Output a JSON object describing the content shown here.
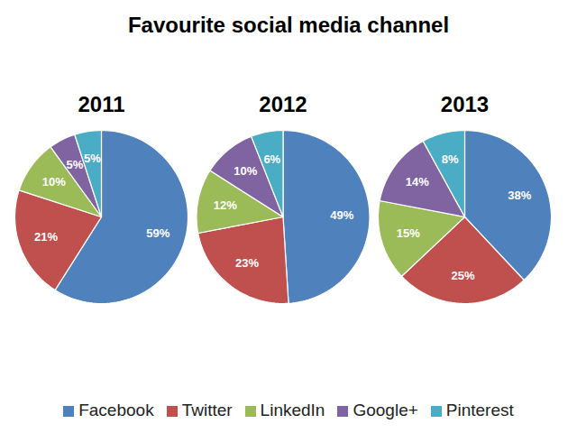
{
  "title": "Favourite social media channel",
  "chart_data": [
    {
      "type": "pie",
      "title": "2011",
      "categories": [
        "Facebook",
        "Twitter",
        "LinkedIn",
        "Google+",
        "Pinterest"
      ],
      "values": [
        59,
        21,
        10,
        5,
        5
      ],
      "value_labels": [
        "59%",
        "21%",
        "10%",
        "5%",
        "5%"
      ],
      "colors": [
        "#4f81bd",
        "#c0504d",
        "#9bbb59",
        "#8064a2",
        "#4bacc6"
      ],
      "data_labels": true,
      "legend": "bottom"
    },
    {
      "type": "pie",
      "title": "2012",
      "categories": [
        "Facebook",
        "Twitter",
        "LinkedIn",
        "Google+",
        "Pinterest"
      ],
      "values": [
        49,
        23,
        12,
        10,
        6
      ],
      "value_labels": [
        "49%",
        "23%",
        "12%",
        "10%",
        "6%"
      ],
      "colors": [
        "#4f81bd",
        "#c0504d",
        "#9bbb59",
        "#8064a2",
        "#4bacc6"
      ],
      "data_labels": true,
      "legend": "bottom"
    },
    {
      "type": "pie",
      "title": "2013",
      "categories": [
        "Facebook",
        "Twitter",
        "LinkedIn",
        "Google+",
        "Pinterest"
      ],
      "values": [
        38,
        25,
        15,
        14,
        8
      ],
      "value_labels": [
        "38%",
        "25%",
        "15%",
        "14%",
        "8%"
      ],
      "colors": [
        "#4f81bd",
        "#c0504d",
        "#9bbb59",
        "#8064a2",
        "#4bacc6"
      ],
      "data_labels": true,
      "legend": "bottom"
    }
  ]
}
